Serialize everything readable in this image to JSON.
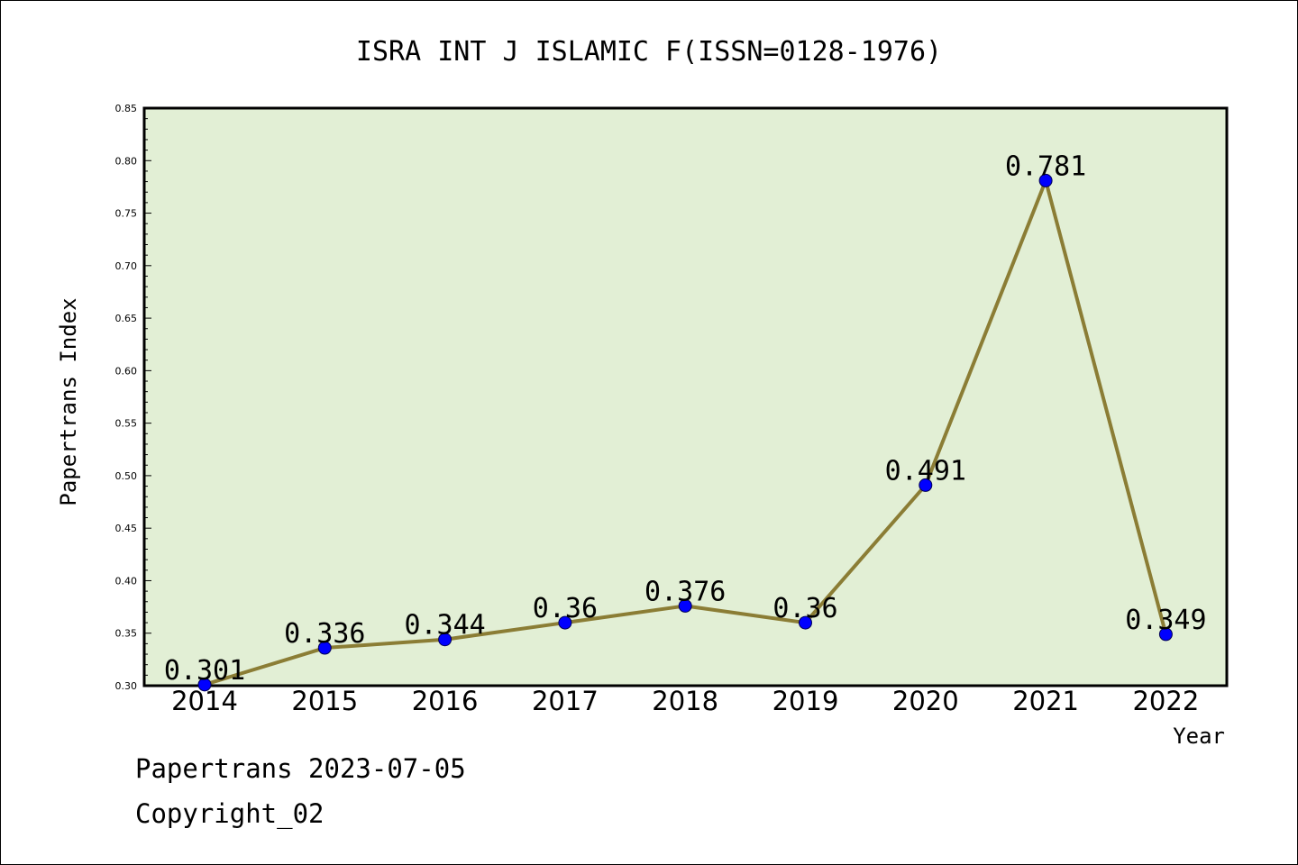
{
  "chart_data": {
    "type": "line",
    "title": "ISRA INT J ISLAMIC F(ISSN=0128-1976)",
    "xlabel": "Year",
    "ylabel": "Papertrans Index",
    "categories": [
      "2014",
      "2015",
      "2016",
      "2017",
      "2018",
      "2019",
      "2020",
      "2021",
      "2022"
    ],
    "series": [
      {
        "values": [
          0.301,
          0.336,
          0.344,
          0.36,
          0.376,
          0.36,
          0.491,
          0.781,
          0.349
        ]
      }
    ],
    "data_labels": [
      "0.301",
      "0.336",
      "0.344",
      "0.36",
      "0.376",
      "0.36",
      "0.491",
      "0.781",
      "0.349"
    ],
    "ylim": [
      0.3,
      0.85
    ],
    "yticks": [
      "0.30",
      "0.35",
      "0.40",
      "0.45",
      "0.50",
      "0.55",
      "0.60",
      "0.65",
      "0.70",
      "0.75",
      "0.80",
      "0.85"
    ],
    "grid": false,
    "colors": {
      "plot_background": "#e2efd5",
      "line": "#8b7d35",
      "marker": "#0000ff"
    }
  },
  "footer": {
    "line1": "Papertrans 2023-07-05",
    "line2": "Copyright_02"
  }
}
